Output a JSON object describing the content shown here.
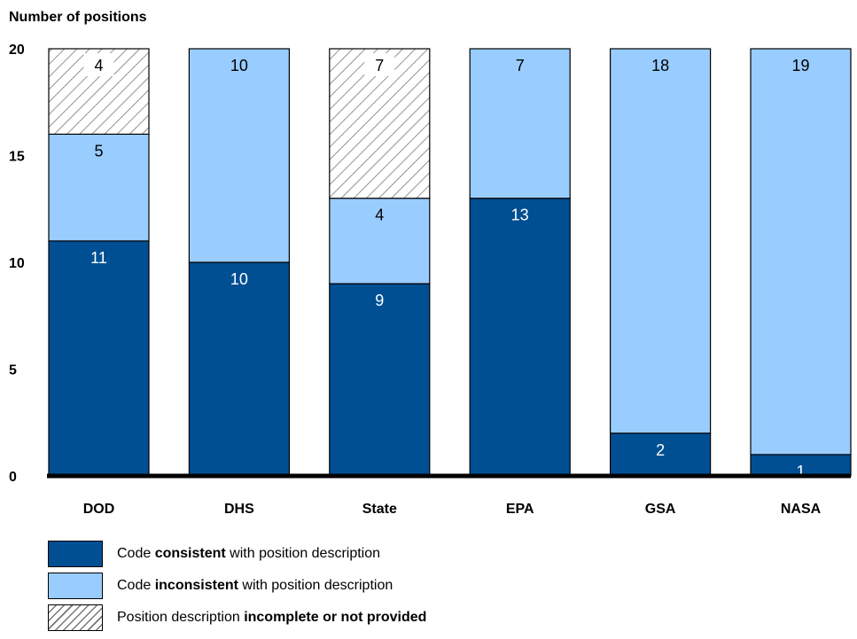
{
  "chart_data": {
    "type": "bar",
    "stacked": true,
    "ylabel": "Number of positions",
    "xlabel": "",
    "ylim": [
      0,
      20
    ],
    "yticks": [
      "0",
      "5",
      "10",
      "15",
      "20"
    ],
    "grid": false,
    "categories": [
      "DOD",
      "DHS",
      "State",
      "EPA",
      "GSA",
      "NASA"
    ],
    "series": [
      {
        "key": "consistent",
        "color": "#004f93",
        "label_color": "#ffffff",
        "values": [
          11,
          10,
          9,
          13,
          2,
          1
        ]
      },
      {
        "key": "inconsistent",
        "color": "#99ccff",
        "label_color": "#000000",
        "values": [
          5,
          10,
          4,
          7,
          18,
          19
        ]
      },
      {
        "key": "incomplete",
        "color": "#ffffff",
        "pattern": "diagonal-hatch",
        "label_color": "#000000",
        "values": [
          4,
          0,
          7,
          0,
          0,
          0
        ]
      }
    ],
    "legend_position": "bottom-left"
  },
  "legend": [
    {
      "pre": "Code ",
      "bold": "consistent",
      "post": " with position description",
      "color": "#004f93",
      "pattern": "solid"
    },
    {
      "pre": "Code ",
      "bold": "inconsistent",
      "post": " with position description",
      "color": "#99ccff",
      "pattern": "solid"
    },
    {
      "pre": "Position description ",
      "bold": "incomplete or not provided",
      "post": "",
      "color": "#ffffff",
      "pattern": "diagonal-hatch"
    }
  ]
}
